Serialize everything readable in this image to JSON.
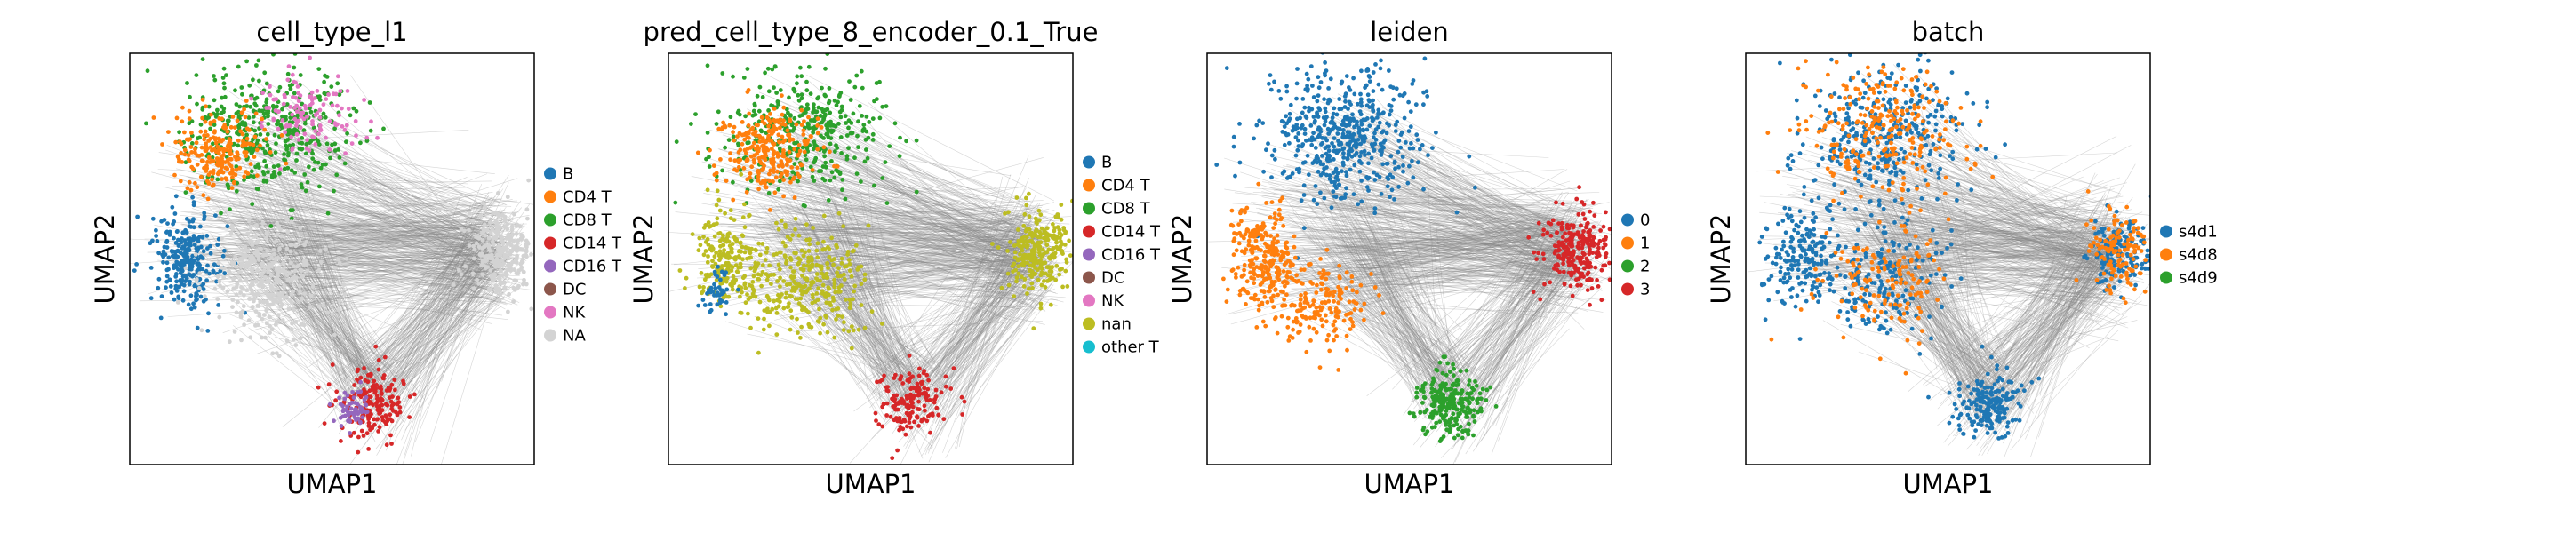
{
  "chart_data": [
    {
      "type": "scatter",
      "title": "cell_type_l1",
      "xlabel": "UMAP1",
      "ylabel": "UMAP2",
      "legend_position": "right",
      "legend": [
        {
          "label": "B",
          "color": "#1f77b4"
        },
        {
          "label": "CD4 T",
          "color": "#ff7f0e"
        },
        {
          "label": "CD8 T",
          "color": "#2ca02c"
        },
        {
          "label": "CD14 T",
          "color": "#d62728"
        },
        {
          "label": "CD16 T",
          "color": "#9467bd"
        },
        {
          "label": "DC",
          "color": "#8c564b"
        },
        {
          "label": "NK",
          "color": "#e377c2"
        },
        {
          "label": "NA",
          "color": "#d3d3d3"
        }
      ]
    },
    {
      "type": "scatter",
      "title": "pred_cell_type_8_encoder_0.1_True",
      "xlabel": "UMAP1",
      "ylabel": "UMAP2",
      "legend_position": "right",
      "legend": [
        {
          "label": "B",
          "color": "#1f77b4"
        },
        {
          "label": "CD4 T",
          "color": "#ff7f0e"
        },
        {
          "label": "CD8 T",
          "color": "#2ca02c"
        },
        {
          "label": "CD14 T",
          "color": "#d62728"
        },
        {
          "label": "CD16 T",
          "color": "#9467bd"
        },
        {
          "label": "DC",
          "color": "#8c564b"
        },
        {
          "label": "NK",
          "color": "#e377c2"
        },
        {
          "label": "nan",
          "color": "#bcbd22"
        },
        {
          "label": "other T",
          "color": "#17becf"
        }
      ]
    },
    {
      "type": "scatter",
      "title": "leiden",
      "xlabel": "UMAP1",
      "ylabel": "UMAP2",
      "legend_position": "right",
      "legend": [
        {
          "label": "0",
          "color": "#1f77b4"
        },
        {
          "label": "1",
          "color": "#ff7f0e"
        },
        {
          "label": "2",
          "color": "#2ca02c"
        },
        {
          "label": "3",
          "color": "#d62728"
        }
      ]
    },
    {
      "type": "scatter",
      "title": "batch",
      "xlabel": "UMAP1",
      "ylabel": "UMAP2",
      "legend_position": "right",
      "legend": [
        {
          "label": "s4d1",
          "color": "#1f77b4"
        },
        {
          "label": "s4d8",
          "color": "#ff7f0e"
        },
        {
          "label": "s4d9",
          "color": "#2ca02c"
        }
      ]
    }
  ]
}
